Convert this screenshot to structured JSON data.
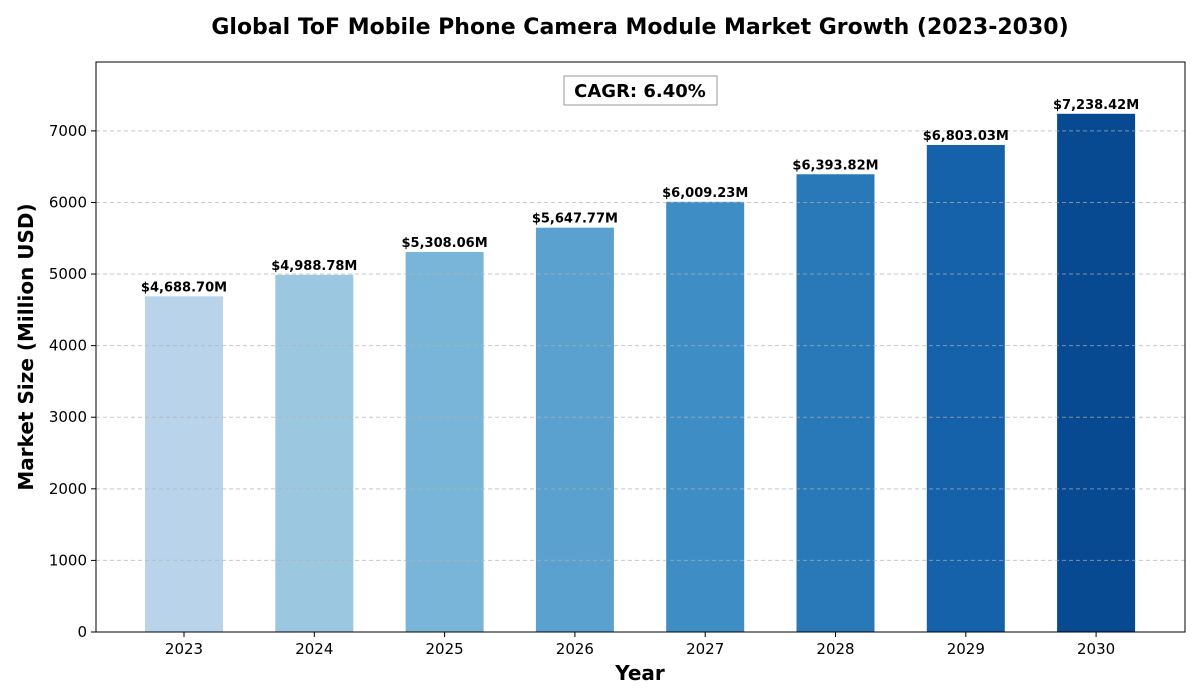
{
  "chart_data": {
    "type": "bar",
    "title": "Global ToF Mobile Phone Camera Module Market Growth (2023-2030)",
    "xlabel": "Year",
    "ylabel": "Market Size (Million USD)",
    "categories": [
      "2023",
      "2024",
      "2025",
      "2026",
      "2027",
      "2028",
      "2029",
      "2030"
    ],
    "values": [
      4688.7,
      4988.78,
      5308.06,
      5647.77,
      6009.23,
      6393.82,
      6803.03,
      7238.42
    ],
    "data_labels": [
      "$4,688.70M",
      "$4,988.78M",
      "$5,308.06M",
      "$5,647.77M",
      "$6,009.23M",
      "$6,393.82M",
      "$6,803.03M",
      "$7,238.42M"
    ],
    "colors": [
      "#b9d4ea",
      "#9cc7e0",
      "#79b5d9",
      "#5aa1cf",
      "#3f8dc5",
      "#2979b9",
      "#1561aa",
      "#084a91"
    ],
    "ylim": [
      0,
      7962
    ],
    "yticks": [
      0,
      1000,
      2000,
      3000,
      4000,
      5000,
      6000,
      7000
    ],
    "grid": true,
    "grid_axis": "y",
    "annotation": "CAGR: 6.40%"
  }
}
